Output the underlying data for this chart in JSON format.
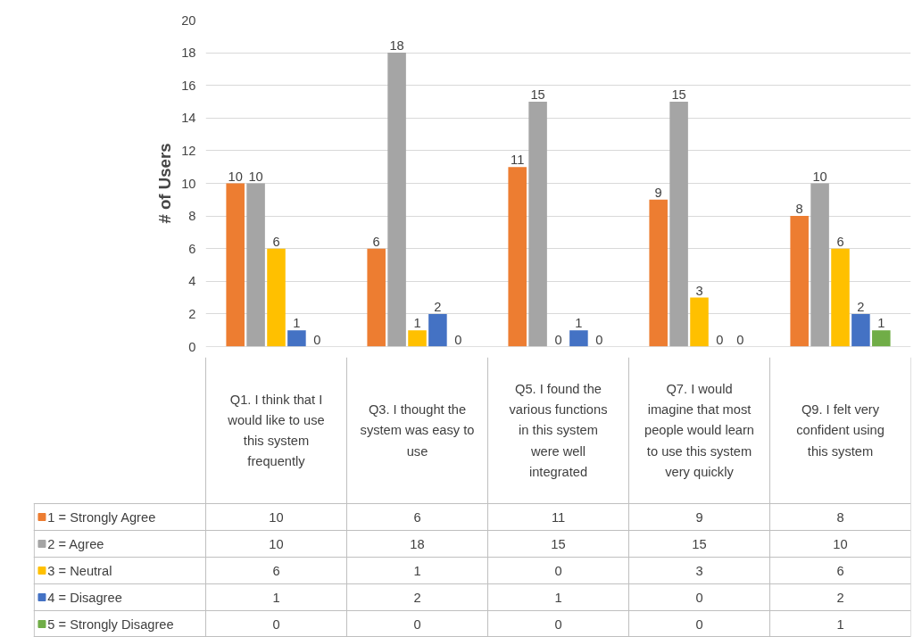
{
  "chart_data": {
    "type": "bar",
    "ylabel": "# of Users",
    "categories": [
      "Q1. I think that I would like to use this system frequently",
      "Q3. I thought the system was easy to use",
      "Q5. I found the various functions in this system were well integrated",
      "Q7. I would imagine that most people would learn to use this system very quickly",
      "Q9. I felt very confident using this system"
    ],
    "series": [
      {
        "name": "1 = Strongly Agree",
        "color": "#ed7d31",
        "values": [
          10,
          6,
          11,
          9,
          8
        ],
        "value_labels": [
          "10",
          "6",
          "11",
          "9",
          "8"
        ]
      },
      {
        "name": "2 = Agree",
        "color": "#a5a5a5",
        "values": [
          10,
          18,
          15,
          15,
          10
        ],
        "value_labels": [
          "10",
          "18",
          "15",
          "15",
          "10"
        ]
      },
      {
        "name": "3 = Neutral",
        "color": "#ffc000",
        "values": [
          6,
          1,
          0,
          3,
          6
        ],
        "value_labels": [
          "6",
          "1",
          "0",
          "3",
          "6"
        ]
      },
      {
        "name": "4 = Disagree",
        "color": "#4472c4",
        "values": [
          1,
          2,
          1,
          0,
          2
        ],
        "value_labels": [
          "1",
          "2",
          "1",
          "0",
          "2"
        ]
      },
      {
        "name": "5 = Strongly Disagree",
        "color": "#70ad47",
        "values": [
          0,
          0,
          0,
          0,
          1
        ],
        "value_labels": [
          "0",
          "0",
          "0",
          "0",
          "1"
        ]
      }
    ],
    "ylim": [
      0,
      20
    ],
    "yticks": [
      0,
      2,
      4,
      6,
      8,
      10,
      12,
      14,
      16,
      18,
      20
    ],
    "grid": "y",
    "data_labels": true,
    "legend": "bottom"
  }
}
